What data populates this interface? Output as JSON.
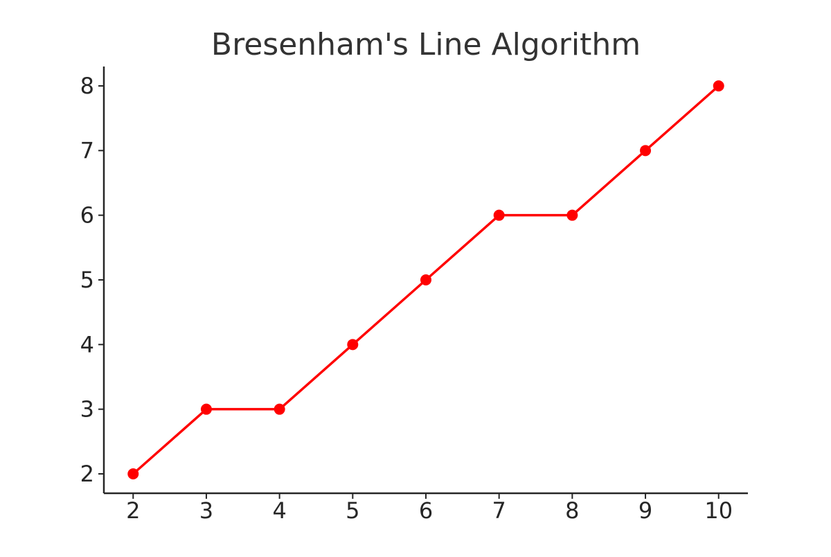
{
  "chart_data": {
    "type": "line",
    "title": "Bresenham's Line Algorithm",
    "xlabel": "",
    "ylabel": "",
    "x": [
      2,
      3,
      4,
      5,
      6,
      7,
      8,
      9,
      10
    ],
    "series": [
      {
        "values": [
          2,
          3,
          3,
          4,
          5,
          6,
          6,
          7,
          8
        ],
        "color": "#ff0000",
        "marker": "circle"
      }
    ],
    "xticks": [
      2,
      3,
      4,
      5,
      6,
      7,
      8,
      9,
      10
    ],
    "yticks": [
      2,
      3,
      4,
      5,
      6,
      7,
      8
    ],
    "xlim": [
      1.6,
      10.4
    ],
    "ylim": [
      1.7,
      8.3
    ],
    "grid": false,
    "spines": "left-bottom"
  }
}
